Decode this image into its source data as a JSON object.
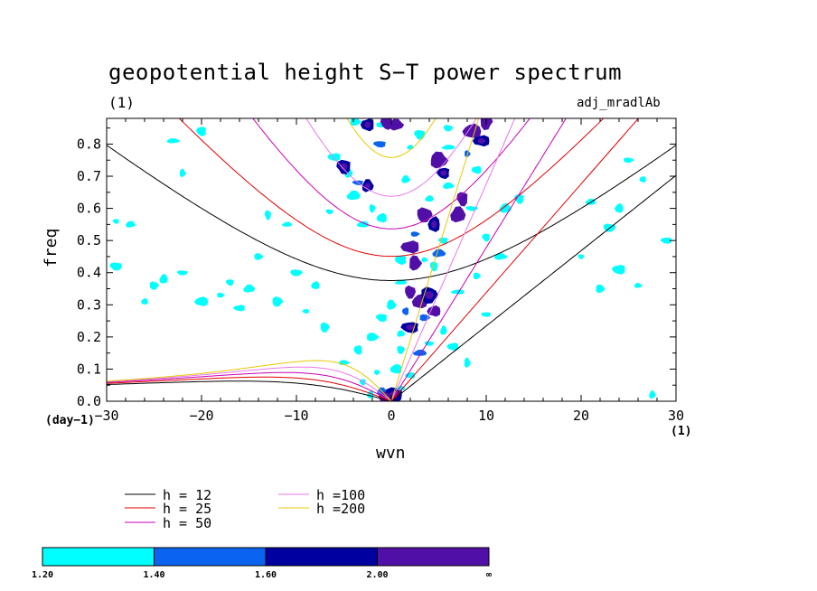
{
  "chart_data": {
    "type": "contour",
    "title": "geopotential height S−T power spectrum",
    "subtitle_left": "(1)",
    "subtitle_right": "adj_mradlAb",
    "xlabel": "wvn",
    "ylabel": "freq",
    "x_unit_label": "(1)",
    "y_unit_label": "(day−1)",
    "xlim": [
      -30,
      30
    ],
    "ylim": [
      0,
      0.88
    ],
    "x_ticks": [
      -30,
      -20,
      -10,
      0,
      10,
      20,
      30
    ],
    "x_tick_labels": [
      "−30",
      "−20",
      "−10",
      "0",
      "10",
      "20",
      "30"
    ],
    "y_ticks": [
      0.0,
      0.1,
      0.2,
      0.3,
      0.4,
      0.5,
      0.6,
      0.7,
      0.8
    ],
    "y_tick_labels": [
      "0.0",
      "0.1",
      "0.2",
      "0.3",
      "0.4",
      "0.5",
      "0.6",
      "0.7",
      "0.8"
    ],
    "dispersion_curves": [
      {
        "label": "h = 12",
        "h": 12,
        "color": "#000000"
      },
      {
        "label": "h = 25",
        "h": 25,
        "color": "#e00000"
      },
      {
        "label": "h = 50",
        "h": 50,
        "color": "#c800b4"
      },
      {
        "label": "h =100",
        "h": 100,
        "color": "#e878e8"
      },
      {
        "label": "h =200",
        "h": 200,
        "color": "#e8c800"
      }
    ],
    "colorbar": {
      "levels": [
        "1.20",
        "1.40",
        "1.60",
        "2.00",
        "∞"
      ],
      "colors": [
        "#00ffff",
        "#0a64f0",
        "#0000a0",
        "#5010a8"
      ]
    },
    "power_regions": [
      {
        "x": -29,
        "y": 0.56,
        "level": 0
      },
      {
        "x": -27.5,
        "y": 0.55,
        "level": 0
      },
      {
        "x": -29,
        "y": 0.42,
        "level": 0
      },
      {
        "x": -24,
        "y": 0.38,
        "level": 0
      },
      {
        "x": -22,
        "y": 0.4,
        "level": 0
      },
      {
        "x": -26,
        "y": 0.31,
        "level": 0
      },
      {
        "x": -25,
        "y": 0.36,
        "level": 0
      },
      {
        "x": -20,
        "y": 0.31,
        "level": 0
      },
      {
        "x": -18,
        "y": 0.33,
        "level": 0
      },
      {
        "x": -16,
        "y": 0.29,
        "level": 0
      },
      {
        "x": -22,
        "y": 0.71,
        "level": 0
      },
      {
        "x": -20,
        "y": 0.84,
        "level": 0
      },
      {
        "x": -23,
        "y": 0.81,
        "level": 0
      },
      {
        "x": -17,
        "y": 0.37,
        "level": 0
      },
      {
        "x": -15,
        "y": 0.35,
        "level": 0
      },
      {
        "x": -13,
        "y": 0.58,
        "level": 0
      },
      {
        "x": -11,
        "y": 0.55,
        "level": 0
      },
      {
        "x": -10,
        "y": 0.4,
        "level": 0
      },
      {
        "x": -8,
        "y": 0.36,
        "level": 0
      },
      {
        "x": -12,
        "y": 0.31,
        "level": 0
      },
      {
        "x": -9,
        "y": 0.28,
        "level": 0
      },
      {
        "x": -14,
        "y": 0.45,
        "level": 0
      },
      {
        "x": -6,
        "y": 0.76,
        "level": 0
      },
      {
        "x": -4.5,
        "y": 0.71,
        "level": 0
      },
      {
        "x": -3.5,
        "y": 0.68,
        "level": 1
      },
      {
        "x": -2.5,
        "y": 0.67,
        "level": 2
      },
      {
        "x": -5,
        "y": 0.73,
        "level": 2
      },
      {
        "x": -4,
        "y": 0.64,
        "level": 0
      },
      {
        "x": -6.5,
        "y": 0.59,
        "level": 0
      },
      {
        "x": -3,
        "y": 0.55,
        "level": 0
      },
      {
        "x": -2,
        "y": 0.6,
        "level": 0
      },
      {
        "x": -1,
        "y": 0.57,
        "level": 0
      },
      {
        "x": -1,
        "y": 0.86,
        "level": 0
      },
      {
        "x": -2.5,
        "y": 0.86,
        "level": 2
      },
      {
        "x": -3.8,
        "y": 0.87,
        "level": 0
      },
      {
        "x": -0.5,
        "y": 0.87,
        "level": 3
      },
      {
        "x": 0.5,
        "y": 0.86,
        "level": 3
      },
      {
        "x": -1.2,
        "y": 0.8,
        "level": 1
      },
      {
        "x": 1.5,
        "y": 0.69,
        "level": 0
      },
      {
        "x": 3,
        "y": 0.83,
        "level": 0
      },
      {
        "x": 2,
        "y": 0.79,
        "level": 0
      },
      {
        "x": 6,
        "y": 0.85,
        "level": 0
      },
      {
        "x": 8.5,
        "y": 0.84,
        "level": 3
      },
      {
        "x": 10,
        "y": 0.87,
        "level": 3
      },
      {
        "x": 9.5,
        "y": 0.81,
        "level": 2
      },
      {
        "x": 8,
        "y": 0.77,
        "level": 1
      },
      {
        "x": 9,
        "y": 0.72,
        "level": 0
      },
      {
        "x": 5,
        "y": 0.75,
        "level": 3
      },
      {
        "x": 5.5,
        "y": 0.71,
        "level": 2
      },
      {
        "x": 6,
        "y": 0.67,
        "level": 0
      },
      {
        "x": 7.5,
        "y": 0.63,
        "level": 3
      },
      {
        "x": 7,
        "y": 0.58,
        "level": 3
      },
      {
        "x": 8.5,
        "y": 0.6,
        "level": 0
      },
      {
        "x": 4,
        "y": 0.63,
        "level": 0
      },
      {
        "x": 3.5,
        "y": 0.58,
        "level": 3
      },
      {
        "x": 4.5,
        "y": 0.55,
        "level": 2
      },
      {
        "x": 2.5,
        "y": 0.52,
        "level": 1
      },
      {
        "x": 2,
        "y": 0.48,
        "level": 3
      },
      {
        "x": 2.5,
        "y": 0.43,
        "level": 3
      },
      {
        "x": 1,
        "y": 0.44,
        "level": 0
      },
      {
        "x": 3.5,
        "y": 0.44,
        "level": 0
      },
      {
        "x": 5.5,
        "y": 0.5,
        "level": 0
      },
      {
        "x": 5,
        "y": 0.46,
        "level": 1
      },
      {
        "x": 4.5,
        "y": 0.42,
        "level": 0
      },
      {
        "x": 1,
        "y": 0.37,
        "level": 0
      },
      {
        "x": 2,
        "y": 0.34,
        "level": 3
      },
      {
        "x": 3,
        "y": 0.31,
        "level": 3
      },
      {
        "x": 4,
        "y": 0.33,
        "level": 2
      },
      {
        "x": 4.5,
        "y": 0.28,
        "level": 3
      },
      {
        "x": 3.5,
        "y": 0.26,
        "level": 1
      },
      {
        "x": 1.5,
        "y": 0.28,
        "level": 1
      },
      {
        "x": 0,
        "y": 0.3,
        "level": 0
      },
      {
        "x": 2,
        "y": 0.23,
        "level": 2
      },
      {
        "x": 1,
        "y": 0.21,
        "level": 0
      },
      {
        "x": -1,
        "y": 0.26,
        "level": 0
      },
      {
        "x": 5.5,
        "y": 0.22,
        "level": 0
      },
      {
        "x": 4,
        "y": 0.18,
        "level": 0
      },
      {
        "x": 3,
        "y": 0.15,
        "level": 1
      },
      {
        "x": 1,
        "y": 0.16,
        "level": 0
      },
      {
        "x": 0.5,
        "y": 0.1,
        "level": 0
      },
      {
        "x": -1.5,
        "y": 0.09,
        "level": 0
      },
      {
        "x": 2,
        "y": 0.08,
        "level": 0
      },
      {
        "x": -2,
        "y": 0.2,
        "level": 0
      },
      {
        "x": -3.5,
        "y": 0.16,
        "level": 0
      },
      {
        "x": -5,
        "y": 0.12,
        "level": 0
      },
      {
        "x": -3,
        "y": 0.06,
        "level": 0
      },
      {
        "x": -1,
        "y": 0.03,
        "level": 1
      },
      {
        "x": 0.3,
        "y": 0.02,
        "level": 2
      },
      {
        "x": 1,
        "y": 0.04,
        "level": 0
      },
      {
        "x": -0.5,
        "y": 0.01,
        "level": 3
      },
      {
        "x": -2.2,
        "y": 0.02,
        "level": 0
      },
      {
        "x": -7,
        "y": 0.23,
        "level": 0
      },
      {
        "x": 7,
        "y": 0.34,
        "level": 0
      },
      {
        "x": 9,
        "y": 0.39,
        "level": 0
      },
      {
        "x": 6.5,
        "y": 0.17,
        "level": 0
      },
      {
        "x": 8,
        "y": 0.12,
        "level": 0
      },
      {
        "x": 10,
        "y": 0.27,
        "level": 0
      },
      {
        "x": 11.5,
        "y": 0.45,
        "level": 0
      },
      {
        "x": 10,
        "y": 0.51,
        "level": 0
      },
      {
        "x": 12,
        "y": 0.6,
        "level": 0
      },
      {
        "x": 20,
        "y": 0.45,
        "level": 0
      },
      {
        "x": 21,
        "y": 0.62,
        "level": 0
      },
      {
        "x": 23,
        "y": 0.54,
        "level": 0
      },
      {
        "x": 24,
        "y": 0.6,
        "level": 0
      },
      {
        "x": 25,
        "y": 0.75,
        "level": 0
      },
      {
        "x": 26.5,
        "y": 0.69,
        "level": 0
      },
      {
        "x": 22,
        "y": 0.35,
        "level": 0
      },
      {
        "x": 24,
        "y": 0.41,
        "level": 0
      },
      {
        "x": 26,
        "y": 0.36,
        "level": 0
      },
      {
        "x": 29,
        "y": 0.5,
        "level": 0
      },
      {
        "x": 27.5,
        "y": 0.02,
        "level": 0
      },
      {
        "x": 13.5,
        "y": 0.63,
        "level": 0
      },
      {
        "x": 6,
        "y": 0.79,
        "level": 0
      }
    ]
  }
}
